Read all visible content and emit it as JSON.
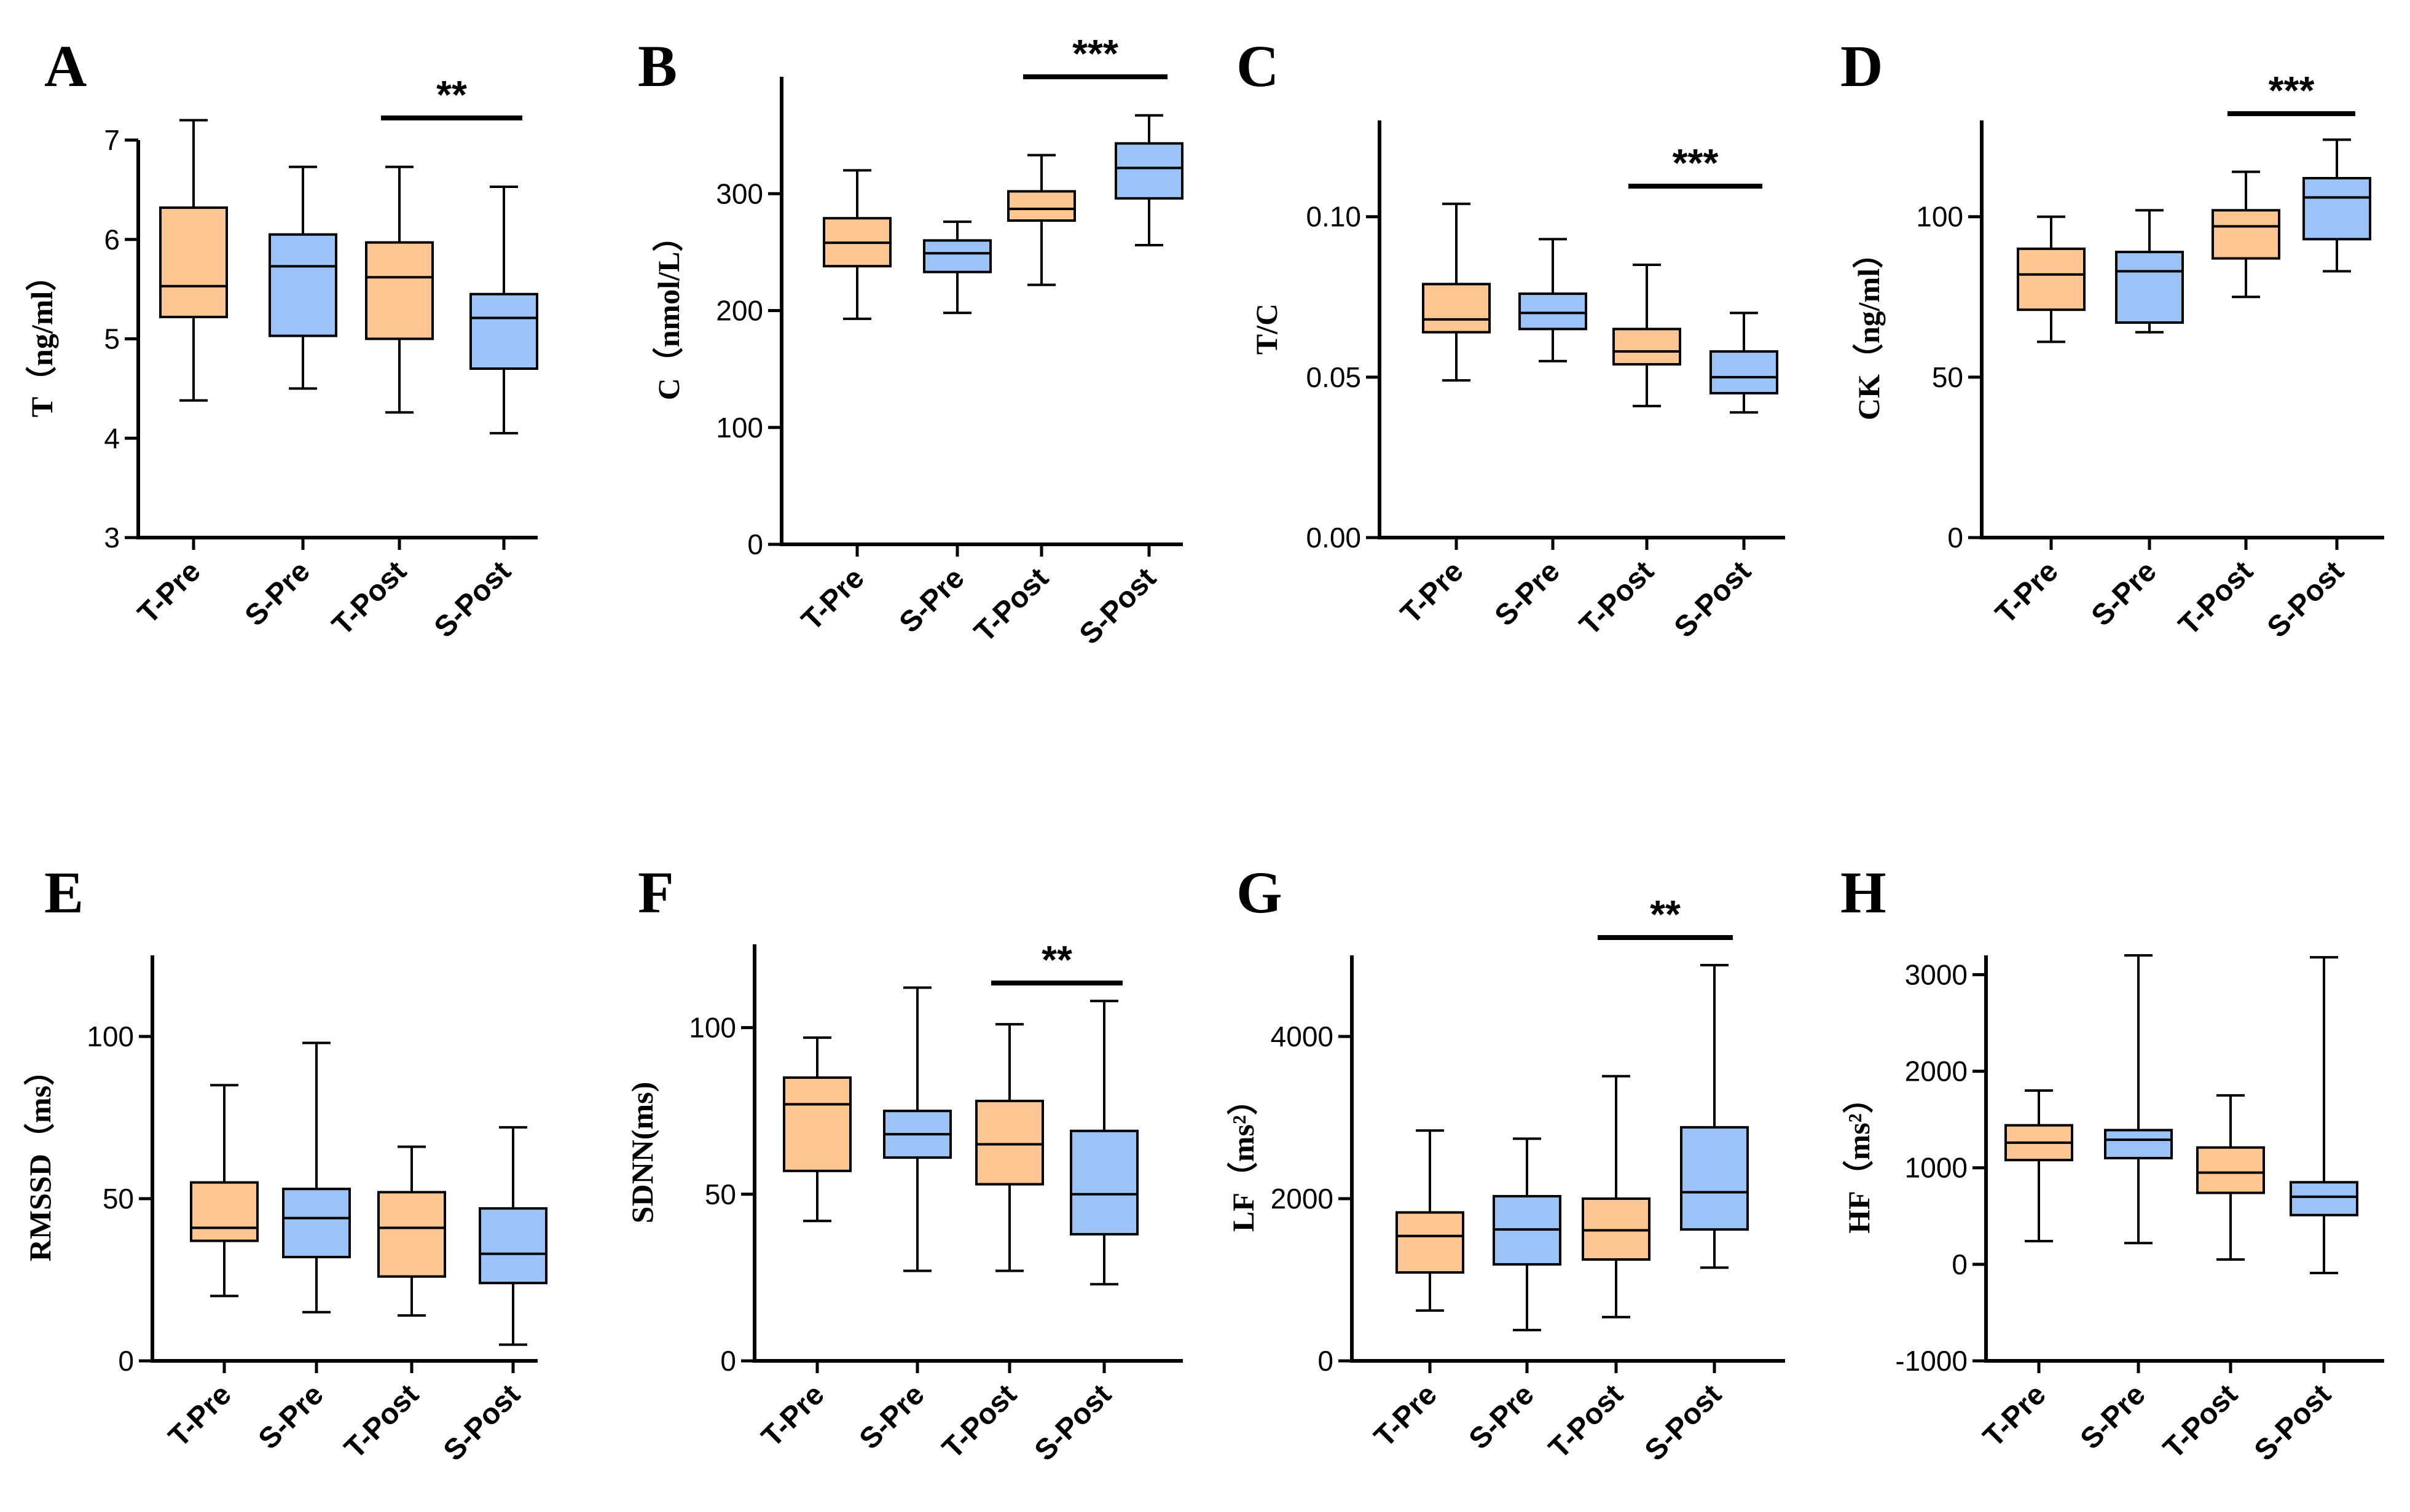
{
  "colors": {
    "T": "#fcc692",
    "S": "#9cc3f7",
    "axis": "#000000"
  },
  "chart_data": [
    {
      "type": "box",
      "panel": "A",
      "ylabel": "T（ng/ml）",
      "ylim": [
        3,
        7
      ],
      "yticks": [
        3,
        4,
        5,
        6,
        7
      ],
      "ytick_labels": [
        "3",
        "4",
        "5",
        "6",
        "7"
      ],
      "categories": [
        "T-Pre",
        "S-Pre",
        "T-Post",
        "S-Post"
      ],
      "series": [
        {
          "group": "T",
          "min": 4.38,
          "q1": 5.22,
          "median": 5.53,
          "q3": 6.32,
          "max": 7.2
        },
        {
          "group": "S",
          "min": 4.5,
          "q1": 5.03,
          "median": 5.73,
          "q3": 6.05,
          "max": 6.73
        },
        {
          "group": "T",
          "min": 4.26,
          "q1": 5.0,
          "median": 5.62,
          "q3": 5.97,
          "max": 6.73
        },
        {
          "group": "S",
          "min": 4.05,
          "q1": 4.7,
          "median": 5.21,
          "q3": 5.45,
          "max": 6.53
        }
      ],
      "significance": {
        "from": 2,
        "to": 3,
        "label": "**"
      }
    },
    {
      "type": "box",
      "panel": "B",
      "ylabel": "C（nmol/L）",
      "ylim": [
        0,
        400
      ],
      "yticks": [
        0,
        100,
        200,
        300
      ],
      "ytick_labels": [
        "0",
        "100",
        "200",
        "300"
      ],
      "categories": [
        "T-Pre",
        "S-Pre",
        "T-Post",
        "S-Post"
      ],
      "series": [
        {
          "group": "T",
          "min": 193,
          "q1": 238,
          "median": 258,
          "q3": 279,
          "max": 320
        },
        {
          "group": "S",
          "min": 198,
          "q1": 233,
          "median": 249,
          "q3": 260,
          "max": 276
        },
        {
          "group": "T",
          "min": 222,
          "q1": 277,
          "median": 287,
          "q3": 302,
          "max": 333
        },
        {
          "group": "S",
          "min": 256,
          "q1": 296,
          "median": 322,
          "q3": 343,
          "max": 367
        }
      ],
      "significance": {
        "from": 2,
        "to": 3,
        "label": "***"
      }
    },
    {
      "type": "box",
      "panel": "C",
      "ylabel": "T/C",
      "ylim": [
        0,
        0.13
      ],
      "yticks": [
        0,
        0.05,
        0.1
      ],
      "ytick_labels": [
        "0.00",
        "0.05",
        "0.10"
      ],
      "categories": [
        "T-Pre",
        "S-Pre",
        "T-Post",
        "S-Post"
      ],
      "series": [
        {
          "group": "T",
          "min": 0.049,
          "q1": 0.064,
          "median": 0.068,
          "q3": 0.079,
          "max": 0.104
        },
        {
          "group": "S",
          "min": 0.055,
          "q1": 0.065,
          "median": 0.07,
          "q3": 0.076,
          "max": 0.093
        },
        {
          "group": "T",
          "min": 0.041,
          "q1": 0.054,
          "median": 0.058,
          "q3": 0.065,
          "max": 0.085
        },
        {
          "group": "S",
          "min": 0.039,
          "q1": 0.045,
          "median": 0.05,
          "q3": 0.058,
          "max": 0.07
        }
      ],
      "significance": {
        "from": 2,
        "to": 3,
        "label": "***"
      }
    },
    {
      "type": "box",
      "panel": "D",
      "ylabel": "CK（ng/ml）",
      "ylim": [
        0,
        130
      ],
      "yticks": [
        0,
        50,
        100
      ],
      "ytick_labels": [
        "0",
        "50",
        "100"
      ],
      "categories": [
        "T-Pre",
        "S-Pre",
        "T-Post",
        "S-Post"
      ],
      "series": [
        {
          "group": "T",
          "min": 61,
          "q1": 71,
          "median": 82,
          "q3": 90,
          "max": 100
        },
        {
          "group": "S",
          "min": 64,
          "q1": 67,
          "median": 83,
          "q3": 89,
          "max": 102
        },
        {
          "group": "T",
          "min": 75,
          "q1": 87,
          "median": 97,
          "q3": 102,
          "max": 114
        },
        {
          "group": "S",
          "min": 83,
          "q1": 93,
          "median": 106,
          "q3": 112,
          "max": 124
        }
      ],
      "significance": {
        "from": 2,
        "to": 3,
        "label": "***"
      }
    },
    {
      "type": "box",
      "panel": "E",
      "ylabel": "RMSSD（ms）",
      "ylim": [
        0,
        125
      ],
      "yticks": [
        0,
        50,
        100
      ],
      "ytick_labels": [
        "0",
        "50",
        "100"
      ],
      "categories": [
        "T-Pre",
        "S-Pre",
        "T-Post",
        "S-Post"
      ],
      "series": [
        {
          "group": "T",
          "min": 20,
          "q1": 37,
          "median": 41,
          "q3": 55,
          "max": 85
        },
        {
          "group": "S",
          "min": 15,
          "q1": 32,
          "median": 44,
          "q3": 53,
          "max": 98
        },
        {
          "group": "T",
          "min": 14,
          "q1": 26,
          "median": 41,
          "q3": 52,
          "max": 66
        },
        {
          "group": "S",
          "min": 5,
          "q1": 24,
          "median": 33,
          "q3": 47,
          "max": 72
        }
      ],
      "significance": null
    },
    {
      "type": "box",
      "panel": "F",
      "ylabel": "SDNN(ms)",
      "ylim": [
        0,
        125
      ],
      "yticks": [
        0,
        50,
        100
      ],
      "ytick_labels": [
        "0",
        "50",
        "100"
      ],
      "categories": [
        "T-Pre",
        "S-Pre",
        "T-Post",
        "S-Post"
      ],
      "series": [
        {
          "group": "T",
          "min": 42,
          "q1": 57,
          "median": 77,
          "q3": 85,
          "max": 97
        },
        {
          "group": "S",
          "min": 27,
          "q1": 61,
          "median": 68,
          "q3": 75,
          "max": 112
        },
        {
          "group": "T",
          "min": 27,
          "q1": 53,
          "median": 65,
          "q3": 78,
          "max": 101
        },
        {
          "group": "S",
          "min": 23,
          "q1": 38,
          "median": 50,
          "q3": 69,
          "max": 108
        }
      ],
      "significance": {
        "from": 2,
        "to": 3,
        "label": "**"
      }
    },
    {
      "type": "box",
      "panel": "G",
      "ylabel": "LF（ms²）",
      "ylim": [
        0,
        5000
      ],
      "yticks": [
        0,
        2000,
        4000
      ],
      "ytick_labels": [
        "0",
        "2000",
        "4000"
      ],
      "categories": [
        "T-Pre",
        "S-Pre",
        "T-Post",
        "S-Post"
      ],
      "series": [
        {
          "group": "T",
          "min": 620,
          "q1": 1090,
          "median": 1540,
          "q3": 1830,
          "max": 2840
        },
        {
          "group": "S",
          "min": 380,
          "q1": 1190,
          "median": 1620,
          "q3": 2030,
          "max": 2740
        },
        {
          "group": "T",
          "min": 540,
          "q1": 1250,
          "median": 1610,
          "q3": 2000,
          "max": 3510
        },
        {
          "group": "S",
          "min": 1150,
          "q1": 1620,
          "median": 2080,
          "q3": 2880,
          "max": 4880
        }
      ],
      "significance": {
        "from": 2,
        "to": 3,
        "label": "**"
      }
    },
    {
      "type": "box",
      "panel": "H",
      "ylabel": "HF（ms²）",
      "ylim": [
        -1000,
        3200
      ],
      "yticks": [
        -1000,
        0,
        1000,
        2000,
        3000
      ],
      "ytick_labels": [
        "-1000",
        "0",
        "1000",
        "2000",
        "3000"
      ],
      "categories": [
        "T-Pre",
        "S-Pre",
        "T-Post",
        "S-Post"
      ],
      "series": [
        {
          "group": "T",
          "min": 240,
          "q1": 1080,
          "median": 1260,
          "q3": 1440,
          "max": 1800
        },
        {
          "group": "S",
          "min": 220,
          "q1": 1100,
          "median": 1290,
          "q3": 1390,
          "max": 3200
        },
        {
          "group": "T",
          "min": 50,
          "q1": 740,
          "median": 950,
          "q3": 1210,
          "max": 1750
        },
        {
          "group": "S",
          "min": -90,
          "q1": 510,
          "median": 700,
          "q3": 850,
          "max": 3180
        }
      ],
      "significance": null
    }
  ]
}
